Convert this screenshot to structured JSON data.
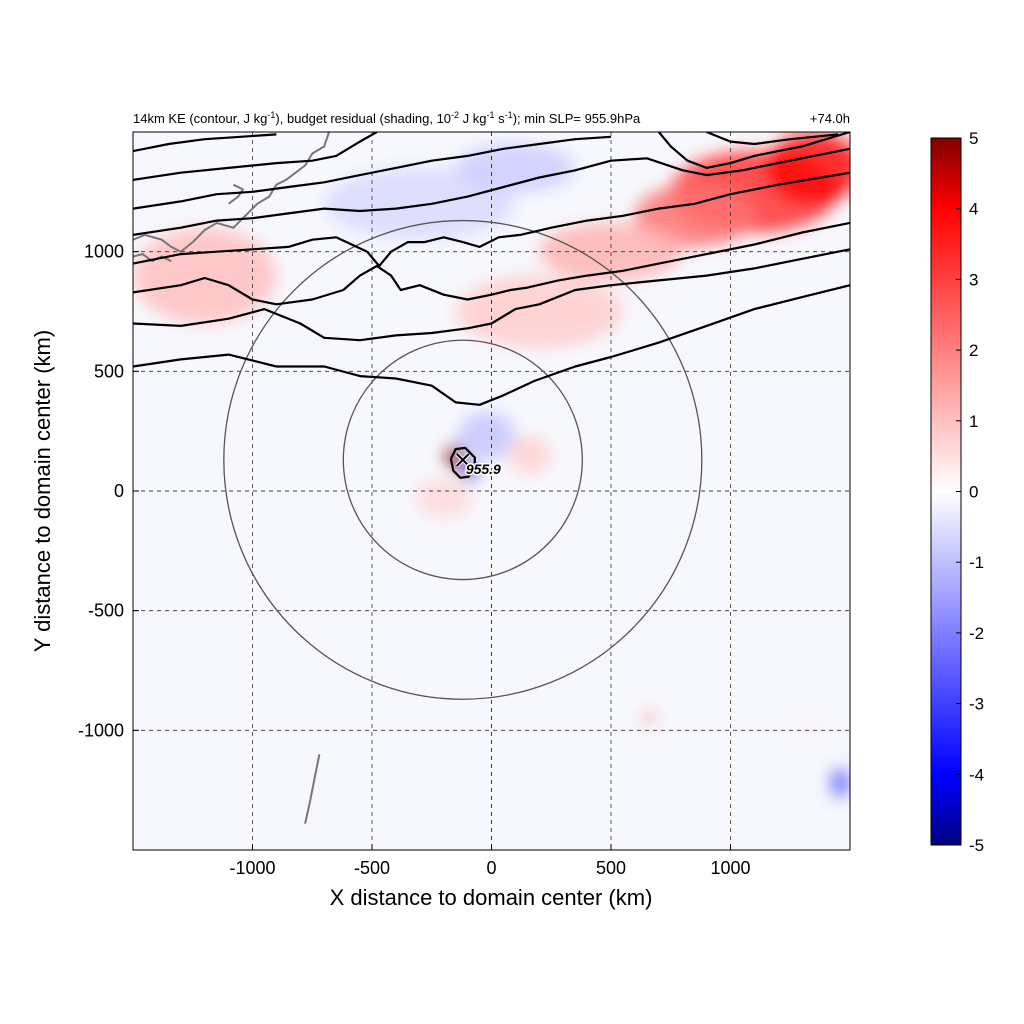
{
  "chart_data": {
    "type": "heatmap",
    "title": {
      "run": "14km KE (contour, J kg",
      "unit1_sup": "-1",
      "mid": "), budget residual (shading, 10",
      "exp_sup": "-2",
      "unit2": " J kg",
      "unit2_sup": "-1",
      "unit3": " s",
      "unit3_sup": "-1",
      "tail": "); min SLP= 955.9hPa"
    },
    "valid_time": "+74.0h",
    "xlabel": "X distance to domain center (km)",
    "ylabel": "Y distance to domain center (km)",
    "xlim": [
      -1500,
      1500
    ],
    "ylim": [
      -1500,
      1500
    ],
    "xticks": [
      -1000,
      -500,
      0,
      500,
      1000
    ],
    "yticks": [
      -1000,
      -500,
      0,
      500,
      1000
    ],
    "grid": true,
    "colorbar": {
      "min": -5,
      "max": 5,
      "ticks": [
        5,
        4,
        3,
        2,
        1,
        0,
        -1,
        -2,
        -3,
        -4,
        -5
      ],
      "colors": [
        "#000080",
        "#0000ff",
        "#ffffff",
        "#ff0000",
        "#800000"
      ]
    },
    "storm_center": {
      "x": -120,
      "y": 130
    },
    "min_slp_label": "955.9",
    "range_rings_km": [
      500,
      1000
    ],
    "contours": [
      {
        "points": [
          [
            -1500,
            520
          ],
          [
            -1300,
            550
          ],
          [
            -1100,
            570
          ],
          [
            -900,
            520
          ],
          [
            -700,
            520
          ],
          [
            -550,
            480
          ],
          [
            -400,
            470
          ],
          [
            -250,
            440
          ],
          [
            -150,
            370
          ],
          [
            -50,
            360
          ],
          [
            50,
            400
          ],
          [
            180,
            460
          ],
          [
            350,
            520
          ],
          [
            500,
            560
          ],
          [
            700,
            620
          ],
          [
            900,
            690
          ],
          [
            1100,
            760
          ],
          [
            1300,
            810
          ],
          [
            1500,
            860
          ]
        ]
      },
      {
        "points": [
          [
            -1500,
            700
          ],
          [
            -1300,
            690
          ],
          [
            -1100,
            720
          ],
          [
            -950,
            760
          ],
          [
            -800,
            700
          ],
          [
            -700,
            640
          ],
          [
            -550,
            630
          ],
          [
            -400,
            650
          ],
          [
            -250,
            660
          ],
          [
            -100,
            680
          ],
          [
            0,
            700
          ],
          [
            100,
            760
          ],
          [
            200,
            780
          ],
          [
            350,
            840
          ],
          [
            500,
            860
          ],
          [
            700,
            880
          ],
          [
            900,
            900
          ],
          [
            1100,
            930
          ],
          [
            1300,
            970
          ],
          [
            1500,
            1010
          ]
        ]
      },
      {
        "points": [
          [
            -1500,
            830
          ],
          [
            -1300,
            860
          ],
          [
            -1200,
            890
          ],
          [
            -1100,
            860
          ],
          [
            -1000,
            800
          ],
          [
            -900,
            780
          ],
          [
            -750,
            800
          ],
          [
            -620,
            840
          ],
          [
            -550,
            900
          ],
          [
            -480,
            940
          ],
          [
            -420,
            900
          ],
          [
            -380,
            840
          ],
          [
            -300,
            860
          ],
          [
            -200,
            820
          ],
          [
            -100,
            800
          ],
          [
            0,
            820
          ],
          [
            80,
            840
          ],
          [
            150,
            850
          ],
          [
            280,
            880
          ],
          [
            400,
            900
          ],
          [
            550,
            920
          ],
          [
            700,
            950
          ],
          [
            900,
            990
          ],
          [
            1100,
            1030
          ],
          [
            1300,
            1080
          ],
          [
            1500,
            1120
          ]
        ]
      },
      {
        "points": [
          [
            -1500,
            950
          ],
          [
            -1300,
            990
          ],
          [
            -1150,
            1000
          ],
          [
            -1000,
            1010
          ],
          [
            -850,
            1020
          ],
          [
            -750,
            1050
          ],
          [
            -650,
            1060
          ],
          [
            -520,
            1000
          ],
          [
            -470,
            940
          ],
          [
            -420,
            1000
          ],
          [
            -350,
            1040
          ],
          [
            -280,
            1040
          ],
          [
            -200,
            1060
          ],
          [
            -120,
            1040
          ],
          [
            -50,
            1020
          ],
          [
            30,
            1060
          ],
          [
            120,
            1070
          ],
          [
            250,
            1100
          ],
          [
            400,
            1130
          ],
          [
            550,
            1150
          ],
          [
            700,
            1180
          ],
          [
            850,
            1200
          ],
          [
            1000,
            1240
          ],
          [
            1200,
            1280
          ],
          [
            1500,
            1330
          ]
        ]
      },
      {
        "points": [
          [
            -1500,
            1070
          ],
          [
            -1300,
            1100
          ],
          [
            -1150,
            1130
          ],
          [
            -1000,
            1140
          ],
          [
            -850,
            1160
          ],
          [
            -700,
            1180
          ],
          [
            -550,
            1170
          ],
          [
            -400,
            1180
          ],
          [
            -250,
            1200
          ],
          [
            -100,
            1230
          ],
          [
            50,
            1270
          ],
          [
            200,
            1310
          ],
          [
            350,
            1340
          ],
          [
            500,
            1380
          ],
          [
            650,
            1390
          ],
          [
            800,
            1340
          ],
          [
            900,
            1320
          ],
          [
            1050,
            1340
          ],
          [
            1200,
            1370
          ],
          [
            1350,
            1400
          ],
          [
            1500,
            1430
          ]
        ]
      },
      {
        "points": [
          [
            -1500,
            1180
          ],
          [
            -1300,
            1210
          ],
          [
            -1150,
            1240
          ],
          [
            -1000,
            1250
          ],
          [
            -850,
            1270
          ],
          [
            -700,
            1290
          ],
          [
            -550,
            1320
          ],
          [
            -400,
            1350
          ],
          [
            -250,
            1380
          ],
          [
            -100,
            1400
          ],
          [
            50,
            1430
          ],
          [
            200,
            1450
          ],
          [
            350,
            1470
          ],
          [
            500,
            1480
          ]
        ]
      },
      {
        "points": [
          [
            -1500,
            1300
          ],
          [
            -1300,
            1330
          ],
          [
            -1100,
            1350
          ],
          [
            -900,
            1370
          ],
          [
            -750,
            1380
          ],
          [
            -650,
            1400
          ],
          [
            -550,
            1460
          ],
          [
            -480,
            1500
          ]
        ]
      },
      {
        "points": [
          [
            -1500,
            1420
          ],
          [
            -1350,
            1450
          ],
          [
            -1200,
            1470
          ],
          [
            -1050,
            1480
          ],
          [
            -900,
            1490
          ]
        ]
      },
      {
        "points": [
          [
            700,
            1500
          ],
          [
            750,
            1440
          ],
          [
            820,
            1380
          ],
          [
            900,
            1350
          ],
          [
            1000,
            1370
          ],
          [
            1100,
            1400
          ],
          [
            1200,
            1420
          ],
          [
            1300,
            1440
          ],
          [
            1400,
            1470
          ],
          [
            1500,
            1500
          ]
        ]
      },
      {
        "points": [
          [
            900,
            1500
          ],
          [
            1000,
            1460
          ],
          [
            1100,
            1450
          ],
          [
            1250,
            1470
          ],
          [
            1350,
            1480
          ],
          [
            1450,
            1490
          ]
        ]
      },
      {
        "points": [
          [
            -170,
            135
          ],
          [
            -150,
            175
          ],
          [
            -110,
            180
          ],
          [
            -70,
            140
          ],
          [
            -70,
            110
          ],
          [
            -95,
            60
          ],
          [
            -130,
            55
          ],
          [
            -160,
            85
          ],
          [
            -170,
            135
          ]
        ]
      }
    ],
    "shading_patches": [
      {
        "x": 1100,
        "y": 1250,
        "rx": 350,
        "ry": 170,
        "value": 3.2
      },
      {
        "x": 850,
        "y": 1150,
        "rx": 250,
        "ry": 130,
        "value": 2.2
      },
      {
        "x": 1350,
        "y": 1350,
        "rx": 200,
        "ry": 150,
        "value": 3.8
      },
      {
        "x": 500,
        "y": 1000,
        "rx": 300,
        "ry": 120,
        "value": 1.2
      },
      {
        "x": -1200,
        "y": 900,
        "rx": 300,
        "ry": 200,
        "value": 1.0
      },
      {
        "x": 200,
        "y": 750,
        "rx": 350,
        "ry": 150,
        "value": 0.8
      },
      {
        "x": -300,
        "y": 1200,
        "rx": 400,
        "ry": 150,
        "value": -0.6
      },
      {
        "x": 100,
        "y": 1350,
        "rx": 250,
        "ry": 100,
        "value": -0.8
      },
      {
        "x": -150,
        "y": 140,
        "rx": 40,
        "ry": 55,
        "value": 4.8
      },
      {
        "x": -90,
        "y": 80,
        "rx": 30,
        "ry": 40,
        "value": -4.2
      },
      {
        "x": -20,
        "y": 230,
        "rx": 120,
        "ry": 100,
        "value": -0.9
      },
      {
        "x": 160,
        "y": 150,
        "rx": 90,
        "ry": 80,
        "value": 0.7
      },
      {
        "x": -200,
        "y": -30,
        "rx": 120,
        "ry": 80,
        "value": 0.6
      },
      {
        "x": 660,
        "y": -950,
        "rx": 18,
        "ry": 18,
        "value": 3.0
      },
      {
        "x": 1460,
        "y": -1220,
        "rx": 40,
        "ry": 60,
        "value": -2.5
      },
      {
        "x": 1330,
        "y": -990,
        "rx": 14,
        "ry": 14,
        "value": 1.2
      }
    ],
    "coastline": [
      {
        "points": [
          [
            -1500,
            1050
          ],
          [
            -1450,
            1070
          ],
          [
            -1380,
            1050
          ],
          [
            -1340,
            1020
          ],
          [
            -1300,
            1000
          ],
          [
            -1250,
            1040
          ],
          [
            -1200,
            1090
          ],
          [
            -1150,
            1120
          ],
          [
            -1080,
            1100
          ],
          [
            -1030,
            1150
          ],
          [
            -980,
            1200
          ],
          [
            -930,
            1230
          ],
          [
            -900,
            1280
          ],
          [
            -860,
            1300
          ],
          [
            -820,
            1330
          ],
          [
            -780,
            1360
          ],
          [
            -750,
            1410
          ],
          [
            -700,
            1440
          ],
          [
            -680,
            1500
          ]
        ]
      },
      {
        "points": [
          [
            -1500,
            980
          ],
          [
            -1460,
            990
          ],
          [
            -1420,
            960
          ],
          [
            -1380,
            980
          ],
          [
            -1340,
            960
          ]
        ]
      },
      {
        "points": [
          [
            -1100,
            1200
          ],
          [
            -1060,
            1230
          ],
          [
            -1040,
            1260
          ],
          [
            -1080,
            1280
          ]
        ]
      },
      {
        "points": [
          [
            -720,
            -1100
          ],
          [
            -740,
            -1200
          ],
          [
            -760,
            -1300
          ],
          [
            -780,
            -1390
          ]
        ]
      }
    ]
  }
}
